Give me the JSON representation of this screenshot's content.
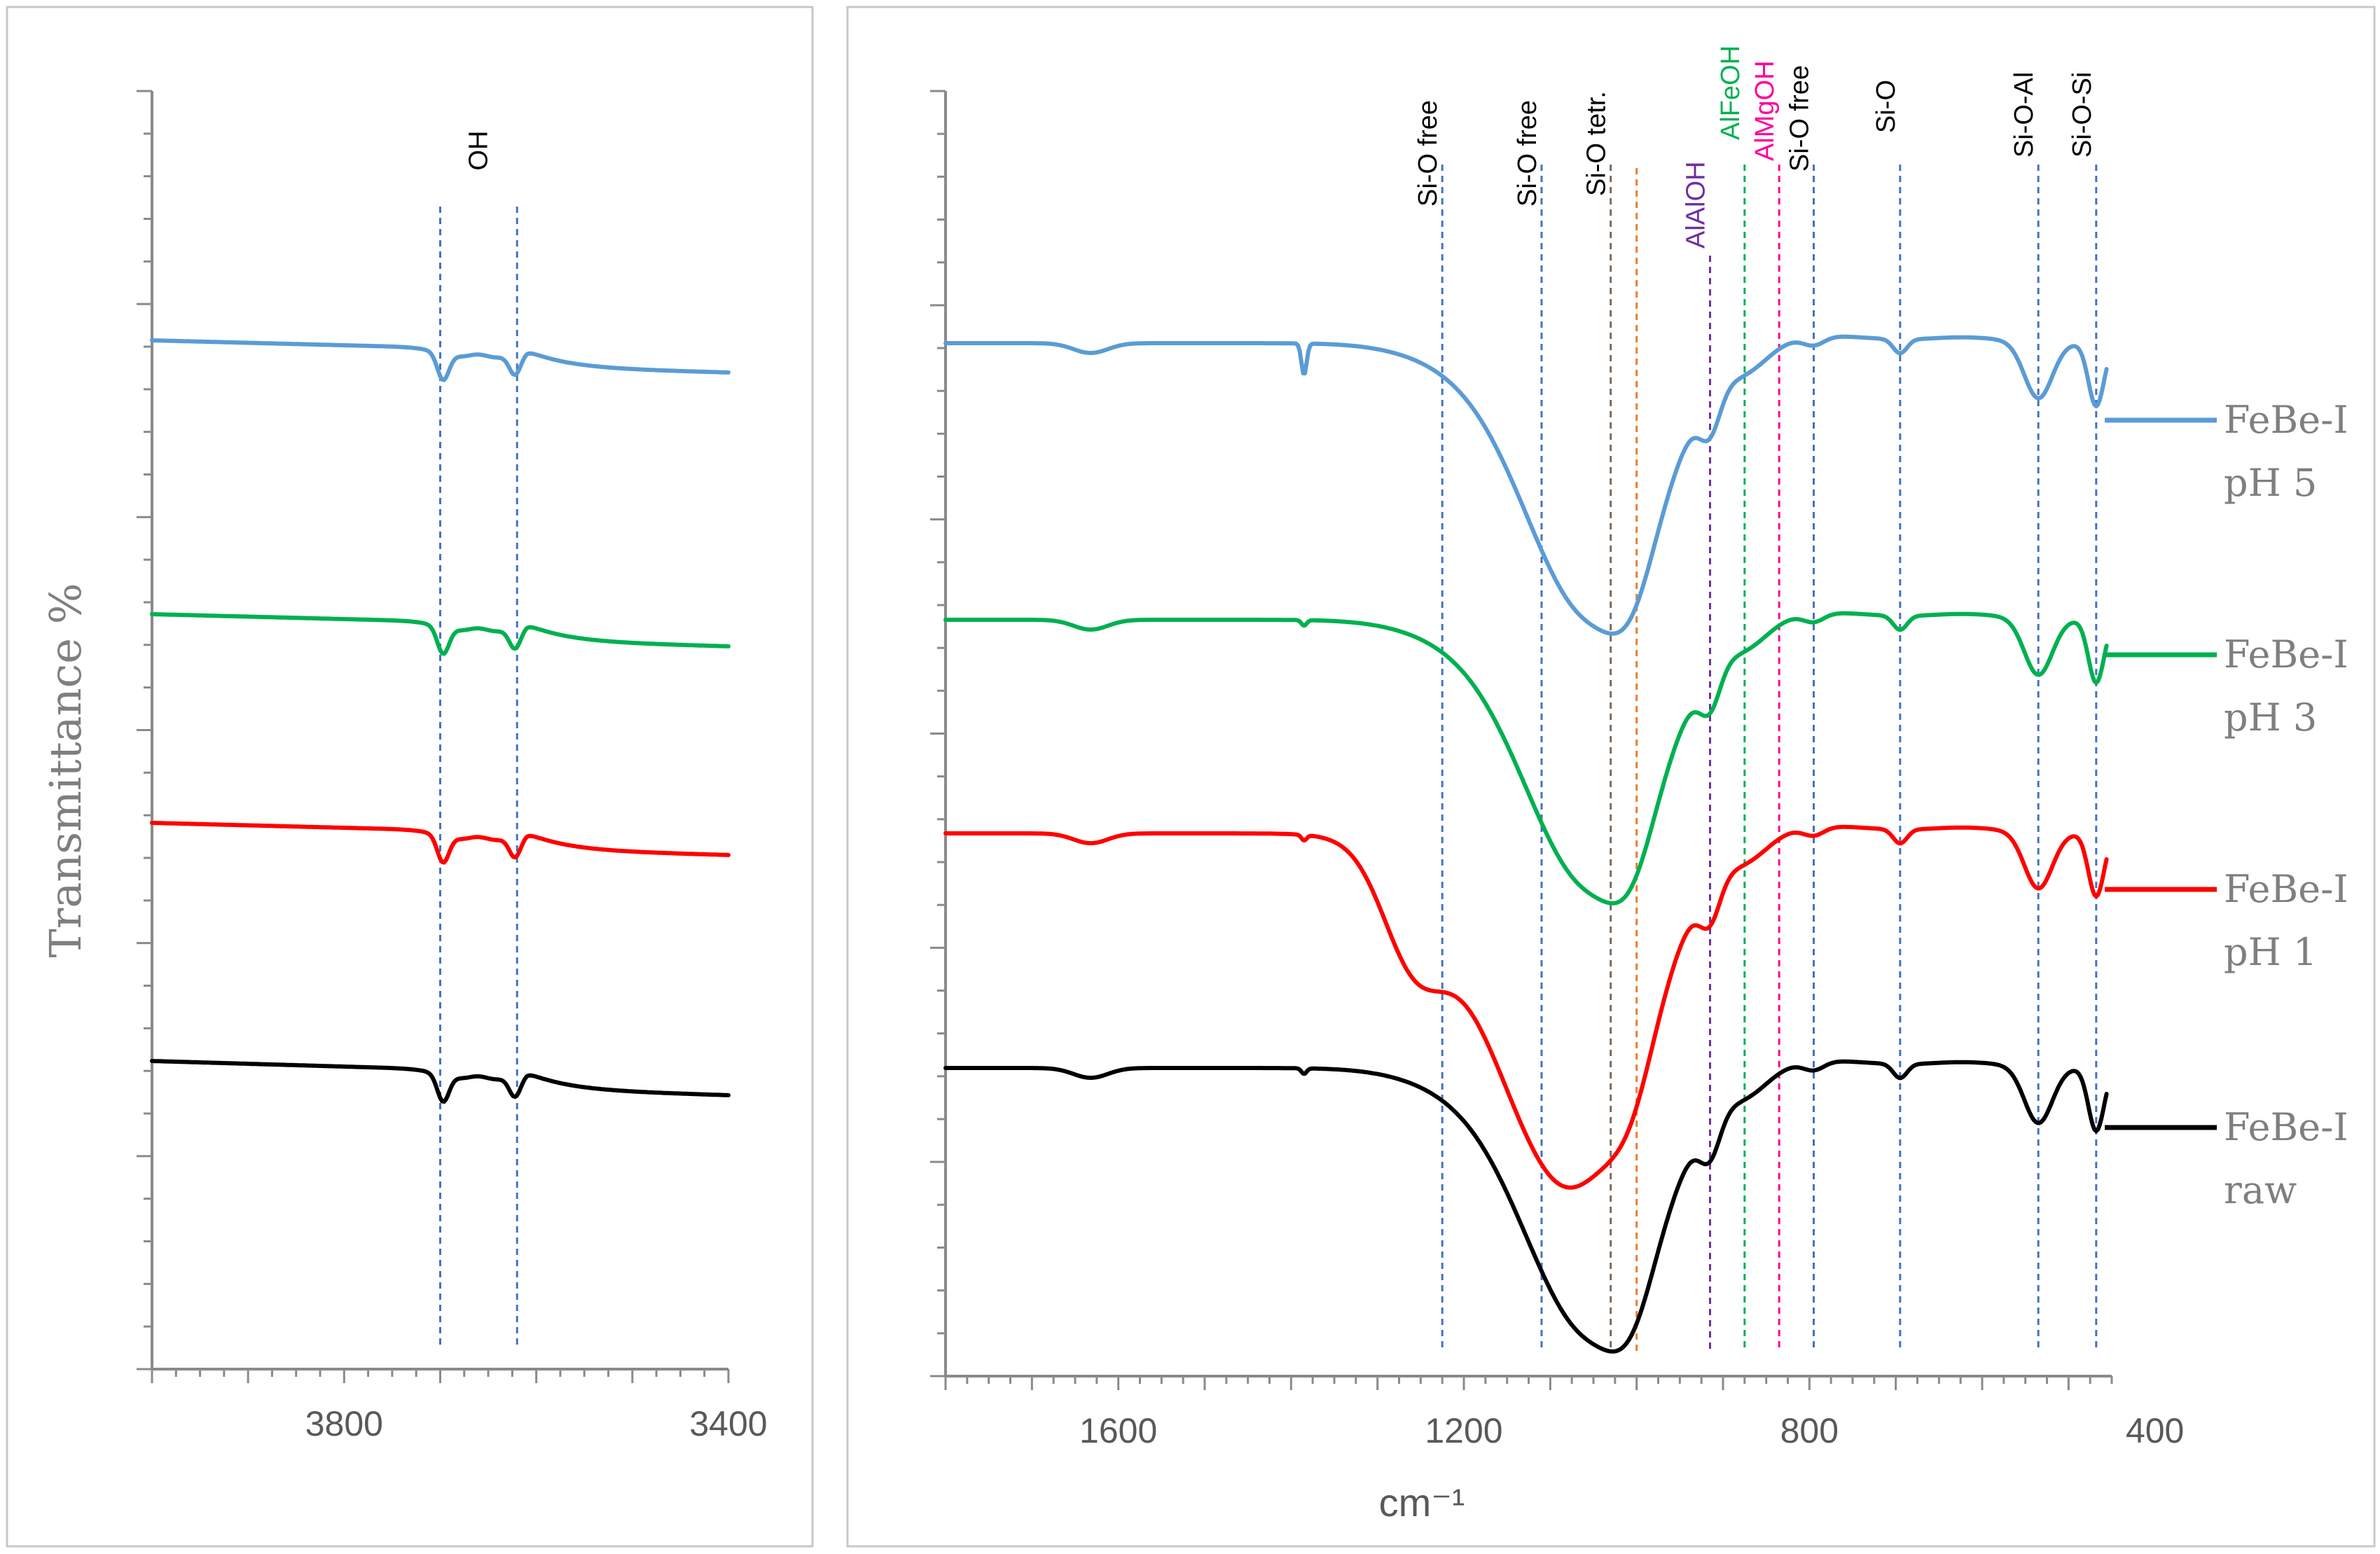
{
  "chart_data": [
    {
      "type": "line",
      "panel": "left",
      "xlim": [
        4000,
        3400
      ],
      "xticks": [
        3800,
        3400
      ],
      "xlabel": "",
      "ylabel": "Transmittance %",
      "series_order": [
        "FeBe-I pH 5",
        "FeBe-I pH 3",
        "FeBe-I pH 1",
        "FeBe-I raw"
      ],
      "band_markers": [
        {
          "label": "OH",
          "x": [
            3700,
            3620
          ],
          "color": "#000000",
          "line_color": "#4472c4"
        }
      ]
    },
    {
      "type": "line",
      "panel": "right",
      "xlim": [
        1800,
        450
      ],
      "xticks": [
        1600,
        1200,
        800,
        400
      ],
      "xlabel": "cm⁻¹",
      "band_markers": [
        {
          "label": "Si-O free",
          "x": 1225,
          "color": "#000000",
          "line_color": "#4472c4"
        },
        {
          "label": "Si-O free",
          "x": 1110,
          "color": "#000000",
          "line_color": "#4472c4"
        },
        {
          "label": "Si-O tetr.",
          "x": 1030,
          "color": "#000000",
          "line_color": "#7f6a5a"
        },
        {
          "label": "",
          "x": 1000,
          "color": "#000000",
          "line_color": "#ed7d31"
        },
        {
          "label": "AlAlOH",
          "x": 915,
          "color": "#7030a0",
          "line_color": "#7030a0"
        },
        {
          "label": "AlFeOH",
          "x": 875,
          "color": "#00b050",
          "line_color": "#00b050"
        },
        {
          "label": "AlMgOH",
          "x": 835,
          "color": "#ff0099",
          "line_color": "#ff0099"
        },
        {
          "label": "Si-O free",
          "x": 795,
          "color": "#000000",
          "line_color": "#4472c4"
        },
        {
          "label": "Si-O",
          "x": 695,
          "color": "#000000",
          "line_color": "#4472c4"
        },
        {
          "label": "Si-O-Al",
          "x": 535,
          "color": "#000000",
          "line_color": "#4472c4"
        },
        {
          "label": "Si-O-Si",
          "x": 468,
          "color": "#000000",
          "line_color": "#4472c4"
        }
      ]
    }
  ],
  "legend": [
    {
      "name": "FeBe-I",
      "sub": "pH 5",
      "color": "#5b9bd5"
    },
    {
      "name": "FeBe-I",
      "sub": "pH 3",
      "color": "#00b050"
    },
    {
      "name": "FeBe-I",
      "sub": "pH 1",
      "color": "#ff0000"
    },
    {
      "name": "FeBe-I",
      "sub": "raw",
      "color": "#000000"
    }
  ]
}
